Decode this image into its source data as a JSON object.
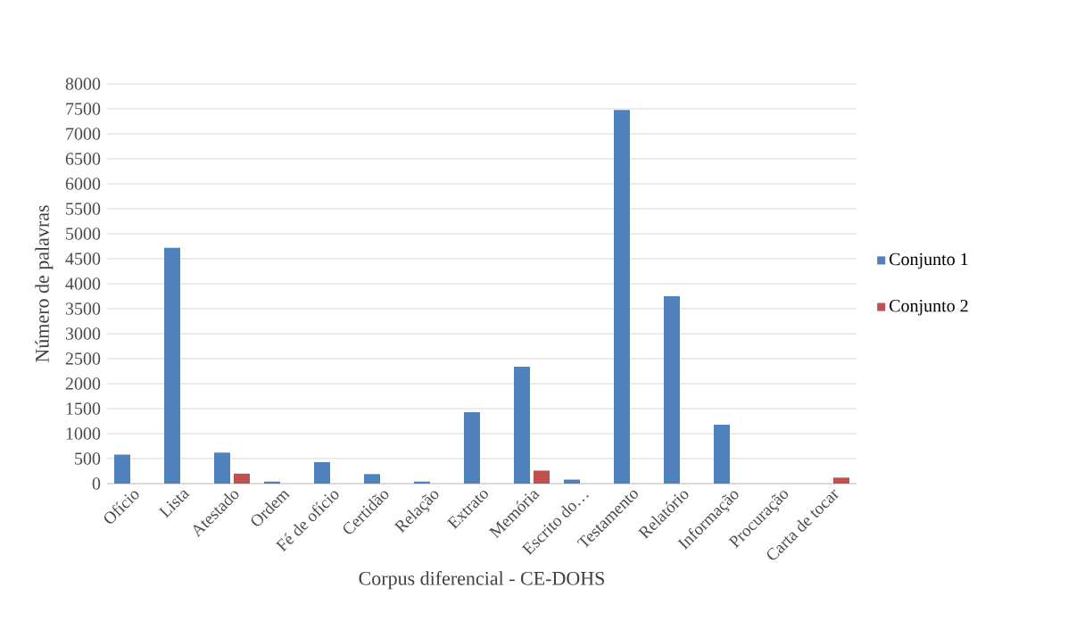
{
  "chart_data": {
    "type": "bar",
    "xlabel": "Corpus diferencial - CE-DOHS",
    "ylabel": "Número de palavras",
    "categories": [
      "Ofício",
      "Lista",
      "Atestado",
      "Ordem",
      "Fé de ofício",
      "Certidão",
      "Relação",
      "Extrato",
      "Memória",
      "Escrito do…",
      "Testamento",
      "Relatório",
      "Informação",
      "Procuração",
      "Carta de tocar"
    ],
    "series": [
      {
        "name": "Conjunto 1",
        "color": "#4f81bd",
        "values": [
          580,
          4720,
          620,
          40,
          430,
          190,
          40,
          1430,
          2340,
          80,
          7480,
          3750,
          1180,
          0,
          0
        ]
      },
      {
        "name": "Conjunto 2",
        "color": "#c0504d",
        "values": [
          0,
          0,
          200,
          0,
          0,
          0,
          0,
          0,
          260,
          0,
          0,
          0,
          0,
          0,
          120
        ]
      }
    ],
    "ylim": [
      0,
      8000
    ],
    "yticks": [
      0,
      500,
      1000,
      1500,
      2000,
      2500,
      3000,
      3500,
      4000,
      4500,
      5000,
      5500,
      6000,
      6500,
      7000,
      7500,
      8000
    ],
    "grid": "y",
    "legend": "right"
  }
}
